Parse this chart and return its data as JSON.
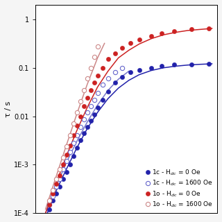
{
  "ylabel": "τ / s",
  "ylim": [
    0.0001,
    2.0
  ],
  "xlim": [
    0.04,
    0.145
  ],
  "series": [
    {
      "label": "1c - H$_{dc}$ = 0 Oe",
      "color": "#2222aa",
      "filled": true,
      "x_data": [
        0.048,
        0.05,
        0.052,
        0.054,
        0.056,
        0.058,
        0.06,
        0.062,
        0.064,
        0.066,
        0.068,
        0.07,
        0.072,
        0.074,
        0.076,
        0.079,
        0.082,
        0.086,
        0.09,
        0.095,
        0.1,
        0.107,
        0.113,
        0.12,
        0.13,
        0.14
      ],
      "y_data": [
        0.00012,
        0.00018,
        0.00025,
        0.00035,
        0.0005,
        0.0007,
        0.001,
        0.0015,
        0.0022,
        0.0032,
        0.0045,
        0.006,
        0.008,
        0.011,
        0.015,
        0.022,
        0.032,
        0.05,
        0.065,
        0.08,
        0.09,
        0.1,
        0.11,
        0.115,
        0.118,
        0.122
      ]
    },
    {
      "label": "1c - H$_{dc}$ = 1600 Oe",
      "color": "#6666cc",
      "filled": false,
      "x_data": [
        0.048,
        0.05,
        0.052,
        0.054,
        0.056,
        0.058,
        0.06,
        0.062,
        0.064,
        0.066,
        0.068,
        0.07,
        0.072,
        0.074,
        0.076,
        0.079,
        0.082,
        0.086,
        0.09
      ],
      "y_data": [
        0.00015,
        0.00022,
        0.00035,
        0.0005,
        0.0008,
        0.0012,
        0.0018,
        0.0028,
        0.004,
        0.006,
        0.0085,
        0.012,
        0.016,
        0.022,
        0.03,
        0.045,
        0.06,
        0.08,
        0.1
      ]
    },
    {
      "label": "1o - H$_{dc}$ = 0 Oe",
      "color": "#cc2222",
      "filled": true,
      "x_data": [
        0.048,
        0.05,
        0.052,
        0.054,
        0.056,
        0.058,
        0.06,
        0.062,
        0.064,
        0.066,
        0.068,
        0.07,
        0.072,
        0.074,
        0.076,
        0.079,
        0.082,
        0.086,
        0.09,
        0.095,
        0.1,
        0.107,
        0.113,
        0.12,
        0.13,
        0.14
      ],
      "y_data": [
        0.00015,
        0.00025,
        0.0004,
        0.0006,
        0.001,
        0.0016,
        0.0025,
        0.004,
        0.0065,
        0.01,
        0.016,
        0.024,
        0.035,
        0.05,
        0.07,
        0.1,
        0.15,
        0.2,
        0.26,
        0.32,
        0.38,
        0.45,
        0.52,
        0.57,
        0.62,
        0.65
      ]
    },
    {
      "label": "1o - H$_{dc}$ = 1600 Oe",
      "color": "#cc8888",
      "filled": false,
      "x_data": [
        0.048,
        0.05,
        0.052,
        0.054,
        0.056,
        0.058,
        0.06,
        0.062,
        0.064,
        0.066,
        0.068,
        0.07,
        0.072,
        0.074,
        0.076
      ],
      "y_data": [
        0.00018,
        0.0003,
        0.0005,
        0.0008,
        0.0014,
        0.0024,
        0.004,
        0.007,
        0.012,
        0.02,
        0.035,
        0.06,
        0.1,
        0.17,
        0.28
      ]
    }
  ],
  "fit_curves": [
    {
      "color": "#2222aa",
      "x": [
        0.046,
        0.052,
        0.058,
        0.064,
        0.07,
        0.076,
        0.082,
        0.088,
        0.094,
        0.1,
        0.107,
        0.114,
        0.121,
        0.128,
        0.135,
        0.142
      ],
      "y": [
        8e-05,
        0.00028,
        0.0008,
        0.0022,
        0.0055,
        0.012,
        0.023,
        0.038,
        0.055,
        0.072,
        0.088,
        0.1,
        0.108,
        0.114,
        0.118,
        0.121
      ]
    },
    {
      "color": "#7777cc",
      "x": [
        0.046,
        0.052,
        0.058,
        0.064,
        0.07,
        0.076,
        0.082,
        0.088,
        0.094
      ],
      "y": [
        0.0001,
        0.00035,
        0.0011,
        0.003,
        0.0075,
        0.017,
        0.034,
        0.058,
        0.085
      ]
    },
    {
      "color": "#cc2222",
      "x": [
        0.046,
        0.052,
        0.058,
        0.064,
        0.07,
        0.076,
        0.082,
        0.088,
        0.094,
        0.1,
        0.107,
        0.114,
        0.121,
        0.128,
        0.135,
        0.142
      ],
      "y": [
        0.0001,
        0.0004,
        0.0015,
        0.005,
        0.015,
        0.04,
        0.085,
        0.16,
        0.23,
        0.31,
        0.4,
        0.48,
        0.54,
        0.59,
        0.62,
        0.65
      ]
    },
    {
      "color": "#cc8888",
      "x": [
        0.046,
        0.052,
        0.058,
        0.064,
        0.07,
        0.076,
        0.08
      ],
      "y": [
        0.00012,
        0.00055,
        0.0025,
        0.011,
        0.045,
        0.16,
        0.32
      ]
    }
  ],
  "yticks": [
    0.0001,
    0.001,
    0.01,
    0.1,
    1
  ],
  "yticklabels": [
    "1E-4",
    "1E-3",
    "0.01",
    "0.1",
    "1"
  ],
  "bg_color": "#f5f5f5",
  "plot_bg": "#ffffff",
  "markersize": 4.5
}
